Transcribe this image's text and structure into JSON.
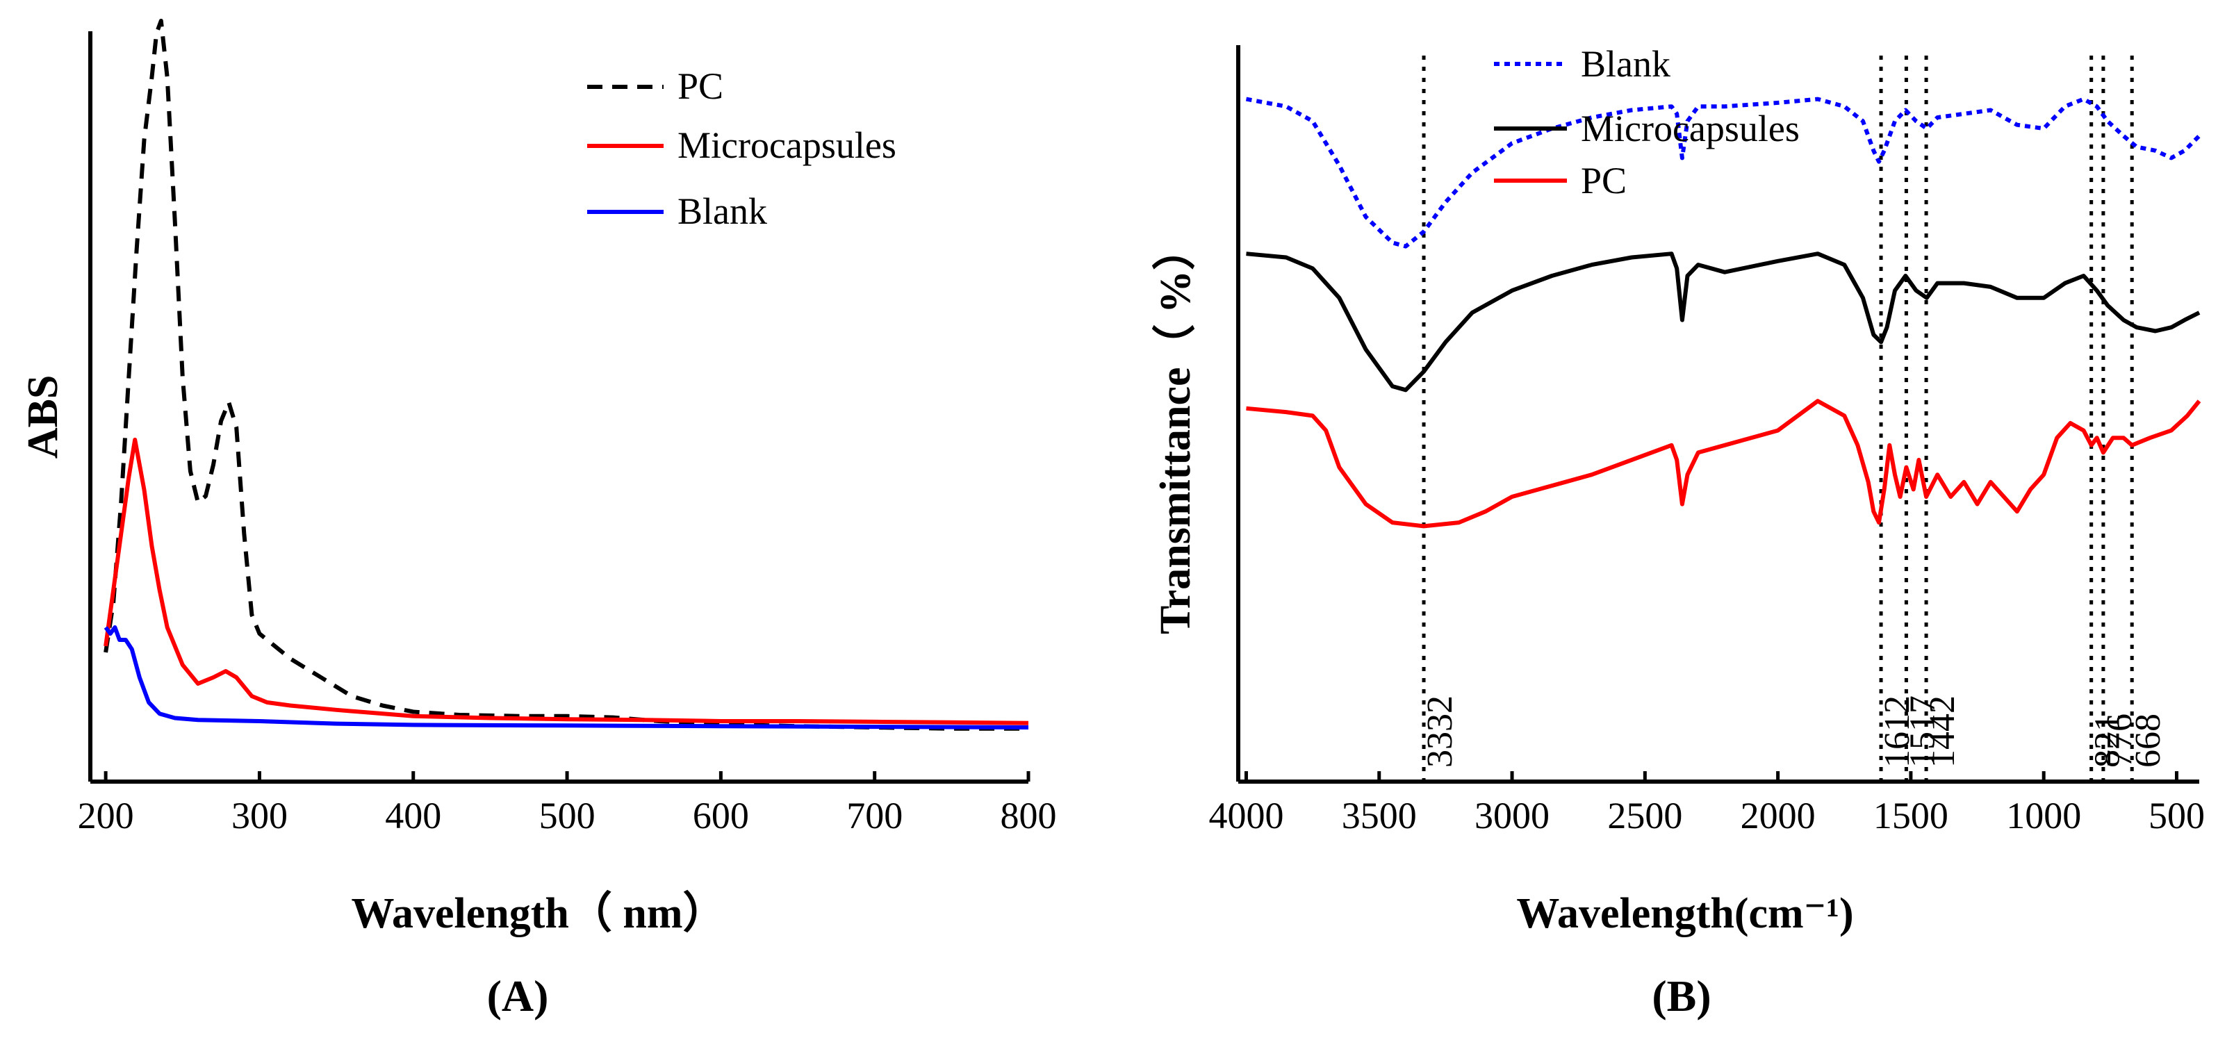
{
  "chart_data": [
    {
      "panel_label": "(A)",
      "type": "line",
      "title": "",
      "xlabel": "Wavelength（ nm）",
      "ylabel": "ABS",
      "xlim": [
        190,
        800
      ],
      "x_ticks": [
        "200",
        "300",
        "400",
        "500",
        "600",
        "700",
        "800"
      ],
      "y_ticks": [],
      "grid": false,
      "legend_position": "top-right",
      "series": [
        {
          "name": "PC",
          "color": "#000000",
          "style": "dashed",
          "points": [
            [
              200,
              0.16
            ],
            [
              205,
              0.24
            ],
            [
              210,
              0.4
            ],
            [
              215,
              0.6
            ],
            [
              220,
              0.8
            ],
            [
              225,
              0.98
            ],
            [
              230,
              1.08
            ],
            [
              233,
              1.15
            ],
            [
              236,
              1.17
            ],
            [
              240,
              1.08
            ],
            [
              245,
              0.85
            ],
            [
              250,
              0.6
            ],
            [
              255,
              0.45
            ],
            [
              260,
              0.4
            ],
            [
              265,
              0.41
            ],
            [
              270,
              0.46
            ],
            [
              275,
              0.53
            ],
            [
              280,
              0.56
            ],
            [
              285,
              0.52
            ],
            [
              290,
              0.35
            ],
            [
              295,
              0.22
            ],
            [
              300,
              0.19
            ],
            [
              310,
              0.17
            ],
            [
              320,
              0.15
            ],
            [
              340,
              0.12
            ],
            [
              360,
              0.09
            ],
            [
              380,
              0.075
            ],
            [
              400,
              0.065
            ],
            [
              430,
              0.06
            ],
            [
              470,
              0.058
            ],
            [
              500,
              0.058
            ],
            [
              530,
              0.056
            ],
            [
              560,
              0.05
            ],
            [
              600,
              0.045
            ],
            [
              650,
              0.042
            ],
            [
              700,
              0.04
            ],
            [
              750,
              0.038
            ],
            [
              800,
              0.038
            ]
          ]
        },
        {
          "name": "Microcapsules",
          "color": "#ff0000",
          "style": "solid",
          "points": [
            [
              200,
              0.17
            ],
            [
              205,
              0.26
            ],
            [
              210,
              0.35
            ],
            [
              215,
              0.44
            ],
            [
              219,
              0.5
            ],
            [
              225,
              0.42
            ],
            [
              230,
              0.33
            ],
            [
              235,
              0.26
            ],
            [
              240,
              0.2
            ],
            [
              250,
              0.14
            ],
            [
              260,
              0.11
            ],
            [
              270,
              0.12
            ],
            [
              278,
              0.13
            ],
            [
              285,
              0.12
            ],
            [
              295,
              0.09
            ],
            [
              305,
              0.08
            ],
            [
              320,
              0.075
            ],
            [
              350,
              0.068
            ],
            [
              400,
              0.058
            ],
            [
              450,
              0.055
            ],
            [
              500,
              0.053
            ],
            [
              550,
              0.052
            ],
            [
              600,
              0.05
            ],
            [
              650,
              0.05
            ],
            [
              700,
              0.049
            ],
            [
              750,
              0.048
            ],
            [
              800,
              0.047
            ]
          ]
        },
        {
          "name": "Blank",
          "color": "#0000ff",
          "style": "solid",
          "points": [
            [
              200,
              0.2
            ],
            [
              203,
              0.19
            ],
            [
              206,
              0.2
            ],
            [
              209,
              0.18
            ],
            [
              213,
              0.18
            ],
            [
              217,
              0.165
            ],
            [
              222,
              0.12
            ],
            [
              228,
              0.08
            ],
            [
              235,
              0.062
            ],
            [
              245,
              0.055
            ],
            [
              260,
              0.052
            ],
            [
              300,
              0.05
            ],
            [
              350,
              0.046
            ],
            [
              400,
              0.044
            ],
            [
              500,
              0.043
            ],
            [
              600,
              0.042
            ],
            [
              700,
              0.041
            ],
            [
              800,
              0.04
            ]
          ]
        }
      ]
    },
    {
      "panel_label": "(B)",
      "type": "line",
      "title": "",
      "xlabel": "Wavelength(cm⁻¹)",
      "ylabel": "Transmittance（ %）",
      "xlim": [
        4030,
        415
      ],
      "x_reversed": true,
      "x_ticks": [
        "4000",
        "3500",
        "3000",
        "2500",
        "2000",
        "1500",
        "1000",
        "500"
      ],
      "y_ticks": [],
      "grid": false,
      "legend_position": "top-left",
      "reference_lines": [
        {
          "x": 3332,
          "label": "3332"
        },
        {
          "x": 1612,
          "label": "1612"
        },
        {
          "x": 1517,
          "label": "1517"
        },
        {
          "x": 1442,
          "label": "1442"
        },
        {
          "x": 821,
          "label": "821"
        },
        {
          "x": 776,
          "label": "776"
        },
        {
          "x": 668,
          "label": "668"
        }
      ],
      "series": [
        {
          "name": "Blank",
          "color": "#0000ff",
          "style": "dotted",
          "points": [
            [
              4000,
              79
            ],
            [
              3850,
              78
            ],
            [
              3750,
              76
            ],
            [
              3650,
              70
            ],
            [
              3550,
              63
            ],
            [
              3450,
              59.5
            ],
            [
              3400,
              59
            ],
            [
              3332,
              61
            ],
            [
              3250,
              65
            ],
            [
              3150,
              69
            ],
            [
              3000,
              73
            ],
            [
              2850,
              75
            ],
            [
              2700,
              76.5
            ],
            [
              2550,
              77.5
            ],
            [
              2400,
              78
            ],
            [
              2380,
              77
            ],
            [
              2360,
              71
            ],
            [
              2340,
              76
            ],
            [
              2300,
              78
            ],
            [
              2200,
              78
            ],
            [
              2000,
              78.5
            ],
            [
              1850,
              79
            ],
            [
              1750,
              78
            ],
            [
              1680,
              76
            ],
            [
              1640,
              72
            ],
            [
              1620,
              70.5
            ],
            [
              1600,
              72
            ],
            [
              1560,
              76
            ],
            [
              1520,
              77.5
            ],
            [
              1480,
              76
            ],
            [
              1440,
              75
            ],
            [
              1400,
              76.5
            ],
            [
              1300,
              77
            ],
            [
              1200,
              77.5
            ],
            [
              1100,
              75.5
            ],
            [
              1000,
              75
            ],
            [
              920,
              78
            ],
            [
              850,
              79
            ],
            [
              800,
              78
            ],
            [
              760,
              76
            ],
            [
              700,
              74
            ],
            [
              650,
              72.5
            ],
            [
              580,
              72
            ],
            [
              520,
              71
            ],
            [
              470,
              72
            ],
            [
              415,
              74
            ]
          ]
        },
        {
          "name": "Microcapsules",
          "color": "#000000",
          "style": "solid",
          "points": [
            [
              4000,
              58
            ],
            [
              3850,
              57.5
            ],
            [
              3750,
              56
            ],
            [
              3650,
              52
            ],
            [
              3550,
              45
            ],
            [
              3450,
              40
            ],
            [
              3400,
              39.5
            ],
            [
              3332,
              42
            ],
            [
              3250,
              46
            ],
            [
              3150,
              50
            ],
            [
              3000,
              53
            ],
            [
              2850,
              55
            ],
            [
              2700,
              56.5
            ],
            [
              2550,
              57.5
            ],
            [
              2400,
              58
            ],
            [
              2380,
              56
            ],
            [
              2360,
              49
            ],
            [
              2340,
              55
            ],
            [
              2300,
              56.5
            ],
            [
              2200,
              55.5
            ],
            [
              2000,
              57
            ],
            [
              1850,
              58
            ],
            [
              1750,
              56.5
            ],
            [
              1680,
              52
            ],
            [
              1640,
              47
            ],
            [
              1612,
              46
            ],
            [
              1590,
              48
            ],
            [
              1560,
              53
            ],
            [
              1520,
              55
            ],
            [
              1480,
              53
            ],
            [
              1440,
              52
            ],
            [
              1400,
              54
            ],
            [
              1300,
              54
            ],
            [
              1200,
              53.5
            ],
            [
              1100,
              52
            ],
            [
              1000,
              52
            ],
            [
              920,
              54
            ],
            [
              850,
              55
            ],
            [
              800,
              53
            ],
            [
              760,
              51
            ],
            [
              700,
              49
            ],
            [
              650,
              48
            ],
            [
              580,
              47.5
            ],
            [
              520,
              48
            ],
            [
              470,
              49
            ],
            [
              415,
              50
            ]
          ]
        },
        {
          "name": "PC",
          "color": "#ff0000",
          "style": "solid",
          "points": [
            [
              4000,
              37
            ],
            [
              3850,
              36.5
            ],
            [
              3750,
              36
            ],
            [
              3700,
              34
            ],
            [
              3650,
              29
            ],
            [
              3550,
              24
            ],
            [
              3450,
              21.5
            ],
            [
              3332,
              21
            ],
            [
              3200,
              21.5
            ],
            [
              3100,
              23
            ],
            [
              3000,
              25
            ],
            [
              2900,
              26
            ],
            [
              2800,
              27
            ],
            [
              2700,
              28
            ],
            [
              2550,
              30
            ],
            [
              2400,
              32
            ],
            [
              2380,
              30
            ],
            [
              2360,
              24
            ],
            [
              2340,
              28
            ],
            [
              2300,
              31
            ],
            [
              2200,
              32
            ],
            [
              2000,
              34
            ],
            [
              1850,
              38
            ],
            [
              1750,
              36
            ],
            [
              1700,
              32
            ],
            [
              1660,
              27
            ],
            [
              1640,
              23
            ],
            [
              1620,
              21.5
            ],
            [
              1600,
              26
            ],
            [
              1580,
              32
            ],
            [
              1560,
              28
            ],
            [
              1540,
              25
            ],
            [
              1517,
              29
            ],
            [
              1490,
              26
            ],
            [
              1470,
              30
            ],
            [
              1442,
              25
            ],
            [
              1400,
              28
            ],
            [
              1350,
              25
            ],
            [
              1300,
              27
            ],
            [
              1250,
              24
            ],
            [
              1200,
              27
            ],
            [
              1150,
              25
            ],
            [
              1100,
              23
            ],
            [
              1050,
              26
            ],
            [
              1000,
              28
            ],
            [
              950,
              33
            ],
            [
              900,
              35
            ],
            [
              850,
              34
            ],
            [
              821,
              32
            ],
            [
              800,
              33
            ],
            [
              776,
              31
            ],
            [
              740,
              33
            ],
            [
              700,
              33
            ],
            [
              668,
              32
            ],
            [
              600,
              33
            ],
            [
              520,
              34
            ],
            [
              460,
              36
            ],
            [
              415,
              38
            ]
          ]
        }
      ]
    }
  ]
}
